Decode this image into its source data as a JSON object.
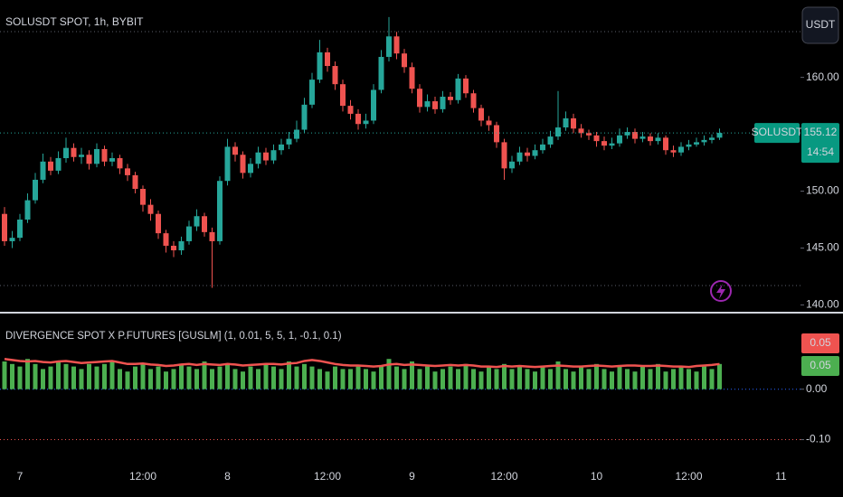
{
  "toolbar": {
    "currency": "USDT"
  },
  "chart_data": [
    {
      "type": "candlestick",
      "title": "SOLUSDT SPOT, 1h, BYBIT",
      "price_label": "SOLUSDT",
      "countdown": "14:54",
      "up_color": "#26a69a",
      "down_color": "#ef5350",
      "categories": [
        null,
        null,
        "7",
        null,
        null,
        null,
        null,
        null,
        null,
        null,
        null,
        null,
        null,
        null,
        null,
        null,
        null,
        null,
        "12:00",
        null,
        null,
        null,
        null,
        null,
        null,
        null,
        null,
        null,
        null,
        "8",
        null,
        null,
        null,
        null,
        null,
        null,
        null,
        null,
        null,
        null,
        null,
        null,
        "12:00",
        null,
        null,
        null,
        null,
        null,
        null,
        null,
        null,
        null,
        null,
        "9",
        null,
        null,
        null,
        null,
        null,
        null,
        null,
        null,
        null,
        null,
        null,
        "12:00",
        null,
        null,
        null,
        null,
        null,
        null,
        null,
        null,
        null,
        null,
        null,
        "10",
        null,
        null,
        null,
        null,
        null,
        null,
        null,
        null,
        null,
        null,
        null,
        "12:00",
        null,
        null,
        null,
        null,
        null,
        null,
        null,
        null,
        null,
        null,
        null,
        "11"
      ],
      "open": [
        148.0,
        145.6,
        145.9,
        147.5,
        149.2,
        151.0,
        152.6,
        151.8,
        152.9,
        153.8,
        153.0,
        153.2,
        152.4,
        153.7,
        152.6,
        152.9,
        152.0,
        151.4,
        150.2,
        148.8,
        148.0,
        146.3,
        145.2,
        144.8,
        145.6,
        146.9,
        147.8,
        146.4,
        145.6,
        150.9,
        153.9,
        153.2,
        151.6,
        152.4,
        153.4,
        152.7,
        153.6,
        154.1,
        154.6,
        155.4,
        157.6,
        159.8,
        162.2,
        161.0,
        159.4,
        157.5,
        156.8,
        155.9,
        156.2,
        158.9,
        161.8,
        163.6,
        162.1,
        160.9,
        159.0,
        157.4,
        157.9,
        157.2,
        158.3,
        158.0,
        159.9,
        158.6,
        157.3,
        156.2,
        155.8,
        154.3,
        152.0,
        152.6,
        153.4,
        153.1,
        153.6,
        154.1,
        154.8,
        155.6,
        156.4,
        155.5,
        155.1,
        154.9,
        154.4,
        154.0,
        154.2,
        154.9,
        155.2,
        154.6,
        154.8,
        154.4,
        154.7,
        153.6,
        153.4,
        153.9,
        154.1,
        154.3,
        154.5,
        154.7,
        null,
        null,
        null,
        null,
        null,
        null,
        null,
        null
      ],
      "high": [
        148.6,
        146.5,
        148.0,
        149.8,
        151.6,
        153.3,
        153.0,
        153.5,
        154.7,
        154.2,
        153.8,
        153.6,
        154.2,
        154.0,
        153.4,
        153.2,
        152.4,
        151.7,
        150.5,
        149.3,
        148.3,
        146.6,
        145.6,
        146.0,
        147.4,
        148.4,
        148.1,
        146.8,
        151.3,
        154.6,
        154.3,
        153.5,
        152.9,
        153.9,
        153.8,
        154.1,
        154.6,
        155.2,
        156.2,
        158.2,
        160.4,
        163.3,
        162.6,
        161.4,
        159.8,
        158.0,
        157.2,
        156.8,
        159.4,
        162.4,
        165.3,
        164.0,
        162.5,
        161.3,
        159.4,
        158.5,
        158.3,
        158.8,
        158.7,
        160.3,
        160.2,
        158.9,
        157.6,
        156.6,
        156.1,
        154.6,
        153.1,
        153.9,
        153.8,
        154.1,
        154.6,
        155.3,
        158.8,
        157.0,
        156.8,
        155.9,
        155.4,
        155.2,
        154.8,
        154.7,
        155.5,
        155.6,
        155.5,
        155.2,
        155.1,
        155.1,
        154.9,
        154.0,
        154.3,
        154.5,
        154.7,
        154.9,
        155.0,
        155.5,
        null,
        null,
        null,
        null,
        null,
        null,
        null,
        null
      ],
      "low": [
        145.2,
        145.0,
        145.6,
        147.2,
        148.9,
        150.7,
        151.4,
        151.5,
        152.5,
        152.6,
        152.4,
        151.9,
        152.1,
        152.2,
        152.2,
        151.5,
        150.9,
        149.8,
        148.2,
        147.4,
        145.8,
        144.6,
        144.2,
        144.4,
        145.3,
        146.5,
        146.0,
        141.5,
        145.3,
        150.5,
        152.6,
        151.1,
        151.2,
        152.0,
        152.3,
        152.4,
        153.2,
        153.7,
        154.3,
        155.1,
        157.3,
        159.5,
        160.5,
        158.9,
        157.0,
        156.3,
        155.4,
        155.5,
        155.9,
        158.6,
        161.4,
        161.6,
        160.4,
        158.6,
        156.9,
        157.0,
        156.8,
        156.9,
        157.6,
        157.7,
        158.2,
        156.9,
        155.7,
        155.3,
        153.8,
        151.0,
        151.6,
        152.3,
        152.6,
        152.8,
        153.3,
        153.8,
        154.5,
        155.3,
        155.1,
        154.7,
        154.5,
        153.9,
        153.6,
        153.7,
        153.9,
        154.6,
        154.2,
        154.3,
        154.0,
        154.1,
        153.2,
        153.0,
        153.1,
        153.6,
        153.9,
        154.0,
        154.2,
        154.5,
        null,
        null,
        null,
        null,
        null,
        null,
        null,
        null
      ],
      "close": [
        145.6,
        145.9,
        147.5,
        149.2,
        151.0,
        152.6,
        151.8,
        152.9,
        153.8,
        153.0,
        153.2,
        152.4,
        153.7,
        152.6,
        152.9,
        152.0,
        151.4,
        150.2,
        148.8,
        148.0,
        146.3,
        145.2,
        144.8,
        145.6,
        146.9,
        147.8,
        146.4,
        145.6,
        150.9,
        153.9,
        153.2,
        151.6,
        152.4,
        153.4,
        152.7,
        153.6,
        154.1,
        154.6,
        155.4,
        157.6,
        159.8,
        162.2,
        161.0,
        159.4,
        157.5,
        156.8,
        155.9,
        156.2,
        158.9,
        161.8,
        163.6,
        162.1,
        160.9,
        159.0,
        157.4,
        157.9,
        157.2,
        158.3,
        158.0,
        159.9,
        158.6,
        157.3,
        156.2,
        155.8,
        154.3,
        152.0,
        152.6,
        153.4,
        153.1,
        153.6,
        154.1,
        154.8,
        155.6,
        156.4,
        155.5,
        155.1,
        154.9,
        154.4,
        154.0,
        154.2,
        154.9,
        155.2,
        154.6,
        154.8,
        154.4,
        154.7,
        153.6,
        153.4,
        153.9,
        154.1,
        154.3,
        154.5,
        154.7,
        155.12,
        null,
        null,
        null,
        null,
        null,
        null,
        null,
        null
      ],
      "ylim": [
        139.4,
        166.8
      ],
      "yticks": [
        {
          "value": 160,
          "label": "160.00"
        },
        {
          "value": 150,
          "label": "150.00"
        },
        {
          "value": 145,
          "label": "145.00"
        },
        {
          "value": 140,
          "label": "140.00"
        }
      ]
    },
    {
      "type": "indicator",
      "title": "DIVERGENCE SPOT X P.FUTURES [GUSLM] (1, 0.01, 5, 5, 1, -0.1, 0.1)",
      "series": [
        {
          "type": "bar",
          "color": "#4caf50",
          "values": [
            0.055,
            0.05,
            0.045,
            0.06,
            0.05,
            0.04,
            0.045,
            0.055,
            0.05,
            0.045,
            0.04,
            0.05,
            0.045,
            0.05,
            0.055,
            0.04,
            0.035,
            0.045,
            0.05,
            0.04,
            0.045,
            0.035,
            0.04,
            0.05,
            0.045,
            0.04,
            0.055,
            0.04,
            0.045,
            0.05,
            0.04,
            0.035,
            0.045,
            0.04,
            0.05,
            0.045,
            0.04,
            0.055,
            0.045,
            0.05,
            0.045,
            0.04,
            0.035,
            0.045,
            0.04,
            0.04,
            0.045,
            0.04,
            0.035,
            0.045,
            0.06,
            0.045,
            0.04,
            0.055,
            0.04,
            0.045,
            0.035,
            0.04,
            0.045,
            0.04,
            0.05,
            0.04,
            0.035,
            0.045,
            0.04,
            0.05,
            0.04,
            0.045,
            0.04,
            0.035,
            0.045,
            0.04,
            0.055,
            0.04,
            0.035,
            0.045,
            0.04,
            0.05,
            0.04,
            0.035,
            0.045,
            0.04,
            0.035,
            0.045,
            0.04,
            0.05,
            0.035,
            0.04,
            0.045,
            0.04,
            0.035,
            0.045,
            0.04,
            0.05
          ]
        },
        {
          "type": "line",
          "color": "#ef5350",
          "values": [
            0.06,
            0.058,
            0.056,
            0.055,
            0.056,
            0.054,
            0.053,
            0.055,
            0.056,
            0.054,
            0.052,
            0.053,
            0.054,
            0.055,
            0.056,
            0.053,
            0.05,
            0.05,
            0.051,
            0.049,
            0.048,
            0.046,
            0.047,
            0.049,
            0.05,
            0.048,
            0.05,
            0.049,
            0.048,
            0.05,
            0.049,
            0.047,
            0.048,
            0.049,
            0.05,
            0.05,
            0.049,
            0.051,
            0.052,
            0.056,
            0.058,
            0.056,
            0.053,
            0.05,
            0.048,
            0.047,
            0.047,
            0.046,
            0.045,
            0.046,
            0.049,
            0.05,
            0.048,
            0.049,
            0.048,
            0.047,
            0.046,
            0.047,
            0.048,
            0.047,
            0.048,
            0.047,
            0.045,
            0.045,
            0.044,
            0.046,
            0.045,
            0.046,
            0.045,
            0.044,
            0.045,
            0.046,
            0.047,
            0.046,
            0.045,
            0.045,
            0.046,
            0.047,
            0.046,
            0.045,
            0.046,
            0.047,
            0.047,
            0.046,
            0.046,
            0.047,
            0.046,
            0.045,
            0.045,
            0.044,
            0.046,
            0.047,
            0.048,
            0.05
          ]
        }
      ],
      "ylim": [
        -0.16,
        0.15
      ],
      "yticks": [
        {
          "value": 0,
          "label": "0.00"
        },
        {
          "value": -0.1,
          "label": "-0.10"
        }
      ]
    }
  ]
}
